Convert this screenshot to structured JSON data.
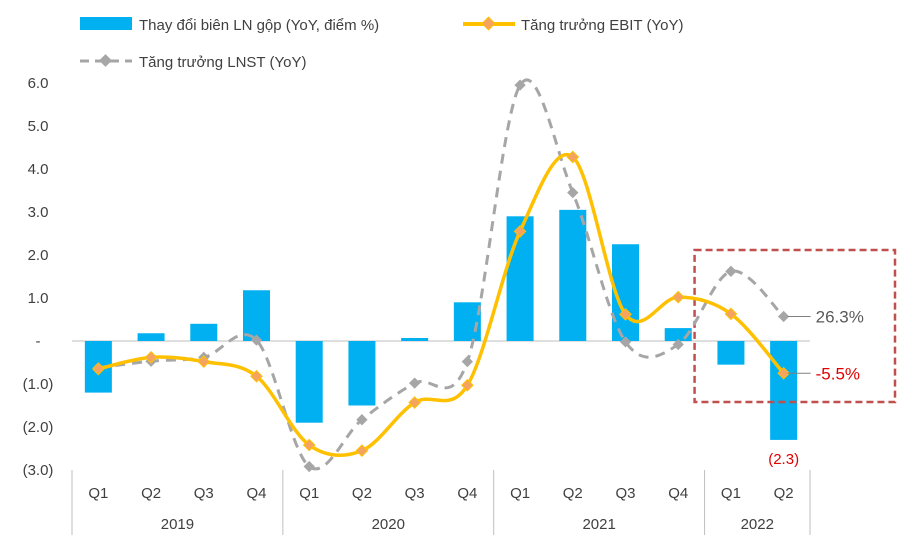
{
  "chart_data": {
    "type": "bar",
    "categories": [
      "Q1",
      "Q2",
      "Q3",
      "Q4",
      "Q1",
      "Q2",
      "Q3",
      "Q4",
      "Q1",
      "Q2",
      "Q3",
      "Q4",
      "Q1",
      "Q2"
    ],
    "groups": [
      {
        "label": "2019",
        "count": 4
      },
      {
        "label": "2020",
        "count": 4
      },
      {
        "label": "2021",
        "count": 4
      },
      {
        "label": "2022",
        "count": 2
      }
    ],
    "ylim": [
      -3.0,
      6.0
    ],
    "yticks": [
      {
        "value": 6,
        "label": "6.0"
      },
      {
        "value": 5,
        "label": "5.0"
      },
      {
        "value": 4,
        "label": "4.0"
      },
      {
        "value": 3,
        "label": "3.0"
      },
      {
        "value": 2,
        "label": "2.0"
      },
      {
        "value": 1,
        "label": "1.0"
      },
      {
        "value": 0,
        "label": "-"
      },
      {
        "value": -1,
        "label": "(1.0)"
      },
      {
        "value": -2,
        "label": "(2.0)"
      },
      {
        "value": -3,
        "label": "(3.0)"
      }
    ],
    "series": [
      {
        "name": "Thay đổi biên LN gộp (YoY, điểm %)",
        "kind": "bar",
        "color": "#00B0F0",
        "values": [
          -1.2,
          0.18,
          0.4,
          1.18,
          -1.9,
          -1.5,
          0.07,
          0.9,
          2.9,
          3.05,
          2.25,
          0.3,
          -0.55,
          -2.3
        ]
      },
      {
        "name": "Tăng trưởng EBIT (YoY)",
        "kind": "line",
        "color": "#FFC000",
        "marker_color": "#F4A460",
        "values": [
          -0.65,
          -0.38,
          -0.48,
          -0.82,
          -2.42,
          -2.55,
          -1.43,
          -1.03,
          2.55,
          4.28,
          0.62,
          1.02,
          0.63,
          -0.75
        ]
      },
      {
        "name": "Tăng trưởng LNST (YoY)",
        "kind": "dashed-line",
        "color": "#A6A6A6",
        "values": [
          -0.62,
          -0.47,
          -0.38,
          0.02,
          -2.92,
          -1.83,
          -0.98,
          -0.48,
          5.95,
          3.45,
          -0.02,
          -0.08,
          1.62,
          0.57
        ]
      }
    ],
    "annotations": [
      {
        "text": "26.3%",
        "color": "#595959",
        "series": 2,
        "index": 13
      },
      {
        "text": "-5.5%",
        "color": "#E00000",
        "series": 1,
        "index": 13
      },
      {
        "text": "(2.3)",
        "color": "#E00000",
        "series": 0,
        "index": 13
      }
    ],
    "highlight": {
      "color": "#C0504D",
      "from_index": 12,
      "to_index": 13
    }
  }
}
